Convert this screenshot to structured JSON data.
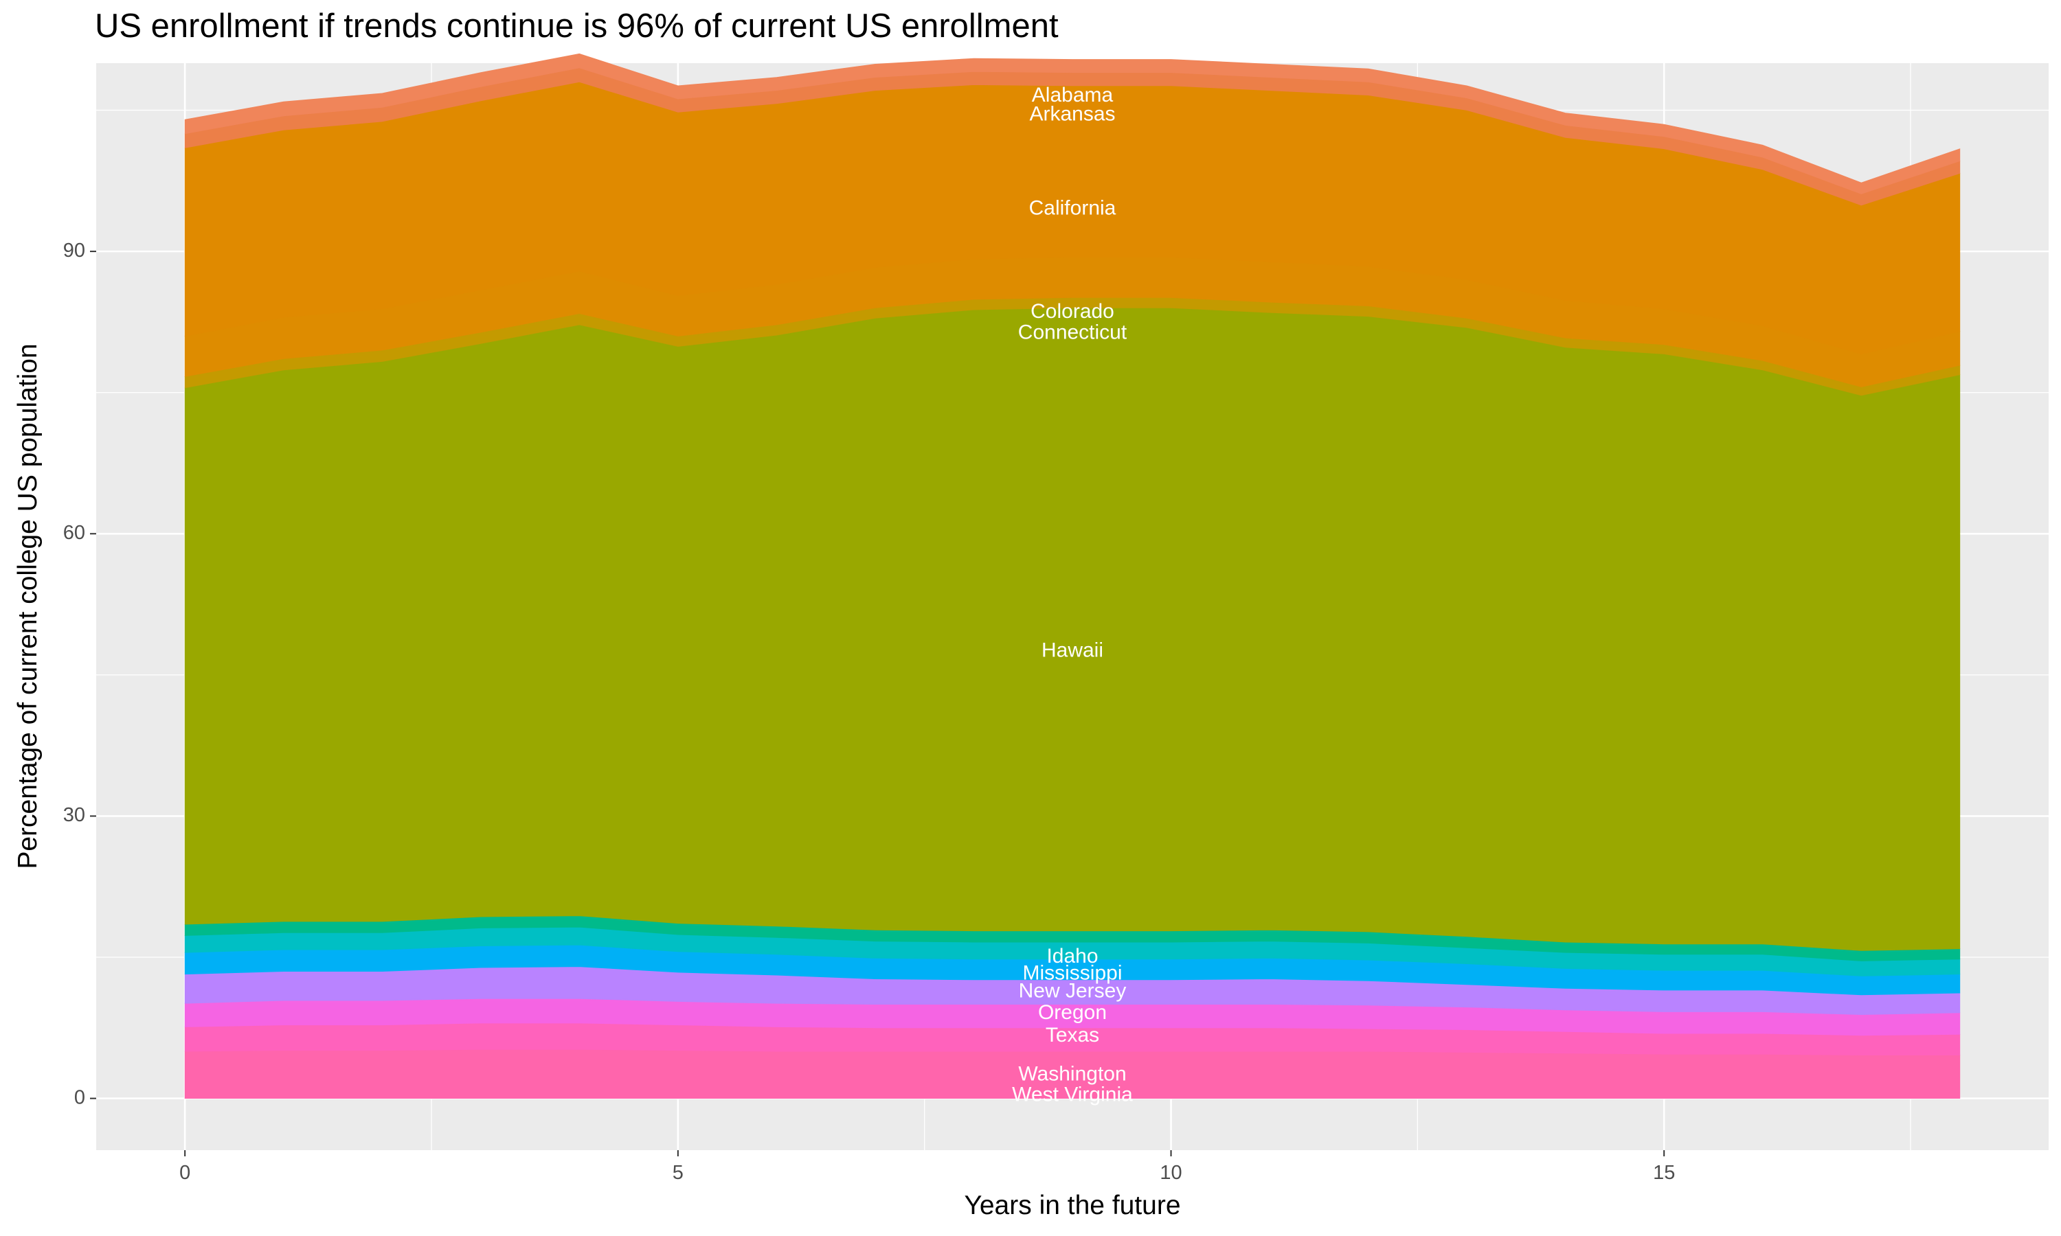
{
  "chart_data": {
    "type": "area",
    "stacked": true,
    "title": "US enrollment if trends continue is 96% of current US enrollment",
    "xlabel": "Years in the future",
    "ylabel": "Percentage of current college US population",
    "xlim": [
      -0.9,
      18.9
    ],
    "ylim": [
      -5.5,
      110
    ],
    "x_ticks": [
      0,
      5,
      10,
      15
    ],
    "y_ticks": [
      0,
      30,
      60,
      90
    ],
    "grid": true,
    "legend": "none",
    "label_x": 9,
    "x": [
      0,
      1,
      2,
      3,
      4,
      5,
      6,
      7,
      8,
      9,
      10,
      11,
      12,
      13,
      14,
      15,
      16,
      17,
      18
    ],
    "series": [
      {
        "name": "West Virginia",
        "color": "#FF65AC",
        "label_y": 0.3,
        "values": [
          5.0,
          5.1,
          5.1,
          5.2,
          5.2,
          5.1,
          5.0,
          5.0,
          5.0,
          5.0,
          5.0,
          5.0,
          5.0,
          4.9,
          4.8,
          4.7,
          4.7,
          4.6,
          4.6
        ]
      },
      {
        "name": "Washington",
        "color": "#FF62BC",
        "label_y": 2.5,
        "values": [
          2.6,
          2.7,
          2.7,
          2.8,
          2.8,
          2.7,
          2.6,
          2.5,
          2.5,
          2.5,
          2.5,
          2.5,
          2.4,
          2.4,
          2.3,
          2.2,
          2.2,
          2.1,
          2.2
        ]
      },
      {
        "name": "Texas",
        "color": "#F564E3",
        "label_y": 6.6,
        "values": [
          2.5,
          2.6,
          2.6,
          2.6,
          2.6,
          2.5,
          2.5,
          2.5,
          2.5,
          2.5,
          2.5,
          2.5,
          2.5,
          2.4,
          2.3,
          2.3,
          2.3,
          2.2,
          2.3
        ]
      },
      {
        "name": "Oregon",
        "color": "#B983FF",
        "label_y": 9.0,
        "values": [
          3.1,
          3.1,
          3.1,
          3.3,
          3.4,
          3.1,
          3.0,
          2.7,
          2.6,
          2.6,
          2.6,
          2.7,
          2.6,
          2.4,
          2.3,
          2.3,
          2.3,
          2.1,
          2.1
        ]
      },
      {
        "name": "New Jersey",
        "color": "#00B0F6",
        "label_y": 11.3,
        "values": [
          2.3,
          2.3,
          2.3,
          2.3,
          2.3,
          2.2,
          2.2,
          2.2,
          2.2,
          2.2,
          2.2,
          2.2,
          2.2,
          2.2,
          2.1,
          2.1,
          2.1,
          2.0,
          2.0
        ]
      },
      {
        "name": "Mississippi",
        "color": "#00BFC4",
        "label_y": 13.2,
        "values": [
          1.8,
          1.8,
          1.8,
          1.9,
          1.9,
          1.8,
          1.8,
          1.8,
          1.8,
          1.8,
          1.8,
          1.8,
          1.8,
          1.7,
          1.7,
          1.7,
          1.7,
          1.6,
          1.6
        ]
      },
      {
        "name": "Idaho",
        "color": "#00BA8B",
        "label_y": 15.0,
        "values": [
          1.2,
          1.2,
          1.2,
          1.2,
          1.2,
          1.2,
          1.2,
          1.2,
          1.2,
          1.2,
          1.2,
          1.2,
          1.2,
          1.2,
          1.1,
          1.1,
          1.1,
          1.1,
          1.1
        ]
      },
      {
        "name": "Hawaii",
        "color": "#99A800",
        "label_y": 47.5,
        "values": [
          57.0,
          58.6,
          59.5,
          60.9,
          62.8,
          61.3,
          62.8,
          65.0,
          66.0,
          66.2,
          66.2,
          65.6,
          65.4,
          64.7,
          63.2,
          62.7,
          61.0,
          59.0,
          61.0
        ]
      },
      {
        "name": "Connecticut",
        "color": "#C49A00",
        "label_y": 81.3,
        "values": [
          1.2,
          1.2,
          1.2,
          1.2,
          1.2,
          1.1,
          1.1,
          1.1,
          1.1,
          1.1,
          1.1,
          1.1,
          1.1,
          1.0,
          1.0,
          1.0,
          1.0,
          0.9,
          1.0
        ]
      },
      {
        "name": "Colorado",
        "color": "#DE8C00",
        "label_y": 83.5,
        "values": [
          4.3,
          4.4,
          4.4,
          4.5,
          4.5,
          4.3,
          4.3,
          4.3,
          4.3,
          4.3,
          4.3,
          4.3,
          4.2,
          4.1,
          4.0,
          3.8,
          3.7,
          3.5,
          3.6
        ]
      },
      {
        "name": "California",
        "color": "#E08A00",
        "label_y": 94.5,
        "values": [
          20.0,
          19.9,
          19.9,
          20.1,
          20.1,
          19.5,
          19.2,
          18.8,
          18.5,
          18.2,
          18.2,
          18.2,
          18.2,
          18.0,
          17.3,
          17.0,
          16.6,
          15.8,
          16.8
        ]
      },
      {
        "name": "Arkansas",
        "color": "#EC7F48",
        "label_y": 104.5,
        "values": [
          1.5,
          1.5,
          1.5,
          1.5,
          1.5,
          1.4,
          1.4,
          1.4,
          1.4,
          1.4,
          1.4,
          1.4,
          1.4,
          1.3,
          1.3,
          1.3,
          1.3,
          1.2,
          1.3
        ]
      },
      {
        "name": "Alabama",
        "color": "#F0855A",
        "label_y": 106.5,
        "values": [
          1.5,
          1.5,
          1.5,
          1.5,
          1.5,
          1.4,
          1.4,
          1.4,
          1.4,
          1.4,
          1.4,
          1.4,
          1.4,
          1.3,
          1.3,
          1.3,
          1.3,
          1.2,
          1.3
        ]
      }
    ]
  }
}
